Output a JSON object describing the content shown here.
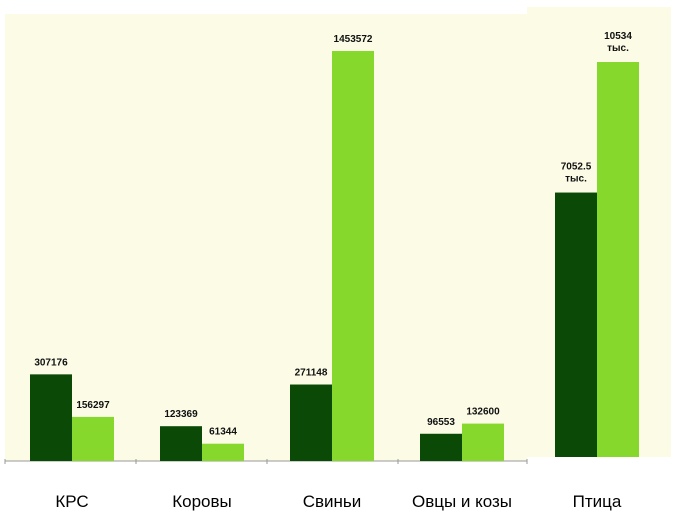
{
  "colors": {
    "background": "#fbfbe6",
    "series1": "#0a4a06",
    "series2": "#86d92c",
    "axis": "#9a9a9a"
  },
  "chart_data": {
    "type": "bar",
    "title": "",
    "xlabel": "",
    "ylabel": "",
    "grid": false,
    "legend": "none",
    "categories": [
      "КРС",
      "Коровы",
      "Свиньи",
      "Овцы и козы",
      "Птица"
    ],
    "series": [
      {
        "values": [
          307176,
          123369,
          271148,
          96553,
          7052500
        ],
        "labels": [
          "307176",
          "123369",
          "271148",
          "96553",
          "7052.5 тыс."
        ]
      },
      {
        "values": [
          156297,
          61344,
          1453572,
          132600,
          10534000
        ],
        "labels": [
          "156297",
          "61344",
          "1453572",
          "132600",
          "10534 тыс."
        ]
      }
    ]
  }
}
